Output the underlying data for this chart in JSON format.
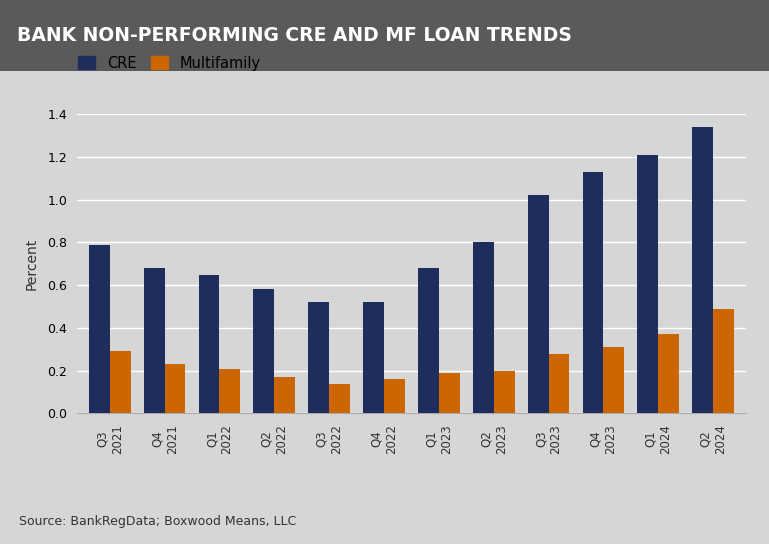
{
  "title": "BANK NON-PERFORMING CRE AND MF LOAN TRENDS",
  "title_bg_color": "#5a5a5a",
  "title_text_color": "#ffffff",
  "bg_color": "#d6d6d6",
  "plot_bg_color": "#d6d6d6",
  "categories": [
    "Q3\n2021",
    "Q4\n2021",
    "Q1\n2022",
    "Q2\n2022",
    "Q3\n2022",
    "Q4\n2022",
    "Q1\n2023",
    "Q2\n2023",
    "Q3\n2023",
    "Q4\n2023",
    "Q1\n2024",
    "Q2\n2024"
  ],
  "cre_values": [
    0.79,
    0.68,
    0.65,
    0.58,
    0.52,
    0.52,
    0.68,
    0.8,
    1.02,
    1.13,
    1.21,
    1.34
  ],
  "mf_values": [
    0.29,
    0.23,
    0.21,
    0.17,
    0.14,
    0.16,
    0.19,
    0.2,
    0.28,
    0.31,
    0.37,
    0.49
  ],
  "cre_color": "#1f2d5c",
  "mf_color": "#cc6600",
  "ylabel": "Percent",
  "ylim": [
    0.0,
    1.4
  ],
  "yticks": [
    0.0,
    0.2,
    0.4,
    0.6,
    0.8,
    1.0,
    1.2,
    1.4
  ],
  "legend_labels": [
    "CRE",
    "Multifamily"
  ],
  "source_text": "Source: BankRegData; Boxwood Means, LLC",
  "bar_width": 0.38,
  "grid_color": "#ffffff"
}
